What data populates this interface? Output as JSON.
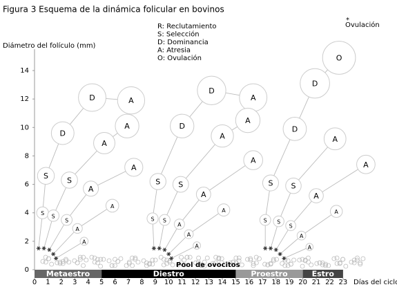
{
  "chart_data": {
    "type": "follicle-waves",
    "title": "Figura 3 Esquema de la dinámica folicular en bovinos",
    "y_label": "Diámetro del folículo (mm)",
    "x_label": "Días del ciclo",
    "legend": [
      "R: Reclutamiento",
      "S: Selección",
      "D: Dominancia",
      "A: Atresia",
      "O: Ovulación"
    ],
    "annotations": {
      "ovulation": "Ovulación",
      "pool": "Pool de ovocitos"
    },
    "xlim": [
      0,
      25
    ],
    "ylim": [
      0,
      15.5
    ],
    "xticks": [
      0,
      1,
      2,
      3,
      4,
      5,
      6,
      7,
      8,
      9,
      10,
      11,
      12,
      13,
      14,
      15,
      16,
      17,
      18,
      19,
      20,
      21,
      22,
      23
    ],
    "yticks": [
      0,
      2,
      4,
      6,
      8,
      10,
      12,
      14
    ],
    "line_color": "#bbbbbb",
    "circle_color": "#cccccc",
    "phases": [
      {
        "name": "Metaestro",
        "start": 0,
        "end": 5,
        "color": "#666666"
      },
      {
        "name": "Diestro",
        "start": 5,
        "end": 15,
        "color": "#000000"
      },
      {
        "name": "Proestro",
        "start": 15,
        "end": 20,
        "color": "#999999"
      },
      {
        "name": "Estro",
        "start": 20,
        "end": 23,
        "color": "#444444"
      }
    ],
    "waves": [
      {
        "chains": [
          {
            "x": [
              0.3,
              0.6,
              0.85,
              2.1,
              4.3,
              7.2
            ],
            "y": [
              1.5,
              4.0,
              6.6,
              9.6,
              12.1,
              11.9
            ],
            "labels": [
              null,
              "S",
              "S",
              "D",
              "D",
              "A"
            ]
          },
          {
            "x": [
              0.7,
              1.4,
              2.6,
              5.2,
              6.9
            ],
            "y": [
              1.5,
              3.8,
              6.3,
              8.9,
              10.1
            ],
            "labels": [
              null,
              "S",
              "S",
              "A",
              "A"
            ]
          },
          {
            "x": [
              1.1,
              2.4,
              4.2,
              7.4
            ],
            "y": [
              1.4,
              3.5,
              5.7,
              7.2
            ],
            "labels": [
              null,
              "S",
              "A",
              "A"
            ]
          },
          {
            "x": [
              1.4,
              3.2,
              5.8
            ],
            "y": [
              1.1,
              2.9,
              4.5
            ],
            "labels": [
              null,
              "A",
              "A"
            ]
          },
          {
            "x": [
              1.6,
              3.7
            ],
            "y": [
              0.8,
              2.0
            ],
            "labels": [
              null,
              "A"
            ]
          }
        ]
      },
      {
        "chains": [
          {
            "x": [
              8.9,
              8.8,
              9.2,
              11.0,
              13.2,
              16.3
            ],
            "y": [
              1.5,
              3.6,
              6.2,
              10.1,
              12.6,
              12.1
            ],
            "labels": [
              null,
              "S",
              "S",
              "D",
              "D",
              "A"
            ]
          },
          {
            "x": [
              9.3,
              9.7,
              10.9,
              14.0,
              15.9
            ],
            "y": [
              1.5,
              3.5,
              6.0,
              9.4,
              10.5
            ],
            "labels": [
              null,
              "S",
              "S",
              "A",
              "A"
            ]
          },
          {
            "x": [
              9.7,
              10.8,
              12.6,
              16.3
            ],
            "y": [
              1.4,
              3.2,
              5.3,
              7.7
            ],
            "labels": [
              null,
              "A",
              "A",
              "A"
            ]
          },
          {
            "x": [
              10.0,
              11.5,
              14.1
            ],
            "y": [
              1.1,
              2.5,
              4.2
            ],
            "labels": [
              null,
              "A",
              "A"
            ]
          },
          {
            "x": [
              10.2,
              12.1
            ],
            "y": [
              0.8,
              1.7
            ],
            "labels": [
              null,
              "A"
            ]
          }
        ]
      },
      {
        "chains": [
          {
            "x": [
              17.2,
              17.2,
              17.6,
              19.4,
              20.9,
              22.7
            ],
            "y": [
              1.5,
              3.5,
              6.1,
              9.9,
              13.1,
              14.9
            ],
            "labels": [
              null,
              "S",
              "S",
              "D",
              "D",
              "O"
            ]
          },
          {
            "x": [
              17.6,
              18.2,
              19.3,
              22.4
            ],
            "y": [
              1.5,
              3.4,
              5.9,
              9.2
            ],
            "labels": [
              null,
              "S",
              "S",
              "A"
            ]
          },
          {
            "x": [
              18.0,
              19.1,
              21.0,
              24.7
            ],
            "y": [
              1.4,
              3.1,
              5.2,
              7.4
            ],
            "labels": [
              null,
              "S",
              "A",
              "A"
            ]
          },
          {
            "x": [
              18.3,
              19.9,
              22.5
            ],
            "y": [
              1.1,
              2.4,
              4.1
            ],
            "labels": [
              null,
              "A",
              "A"
            ]
          },
          {
            "x": [
              18.6,
              20.5
            ],
            "y": [
              0.8,
              1.6
            ],
            "labels": [
              null,
              "A"
            ]
          }
        ]
      }
    ]
  }
}
